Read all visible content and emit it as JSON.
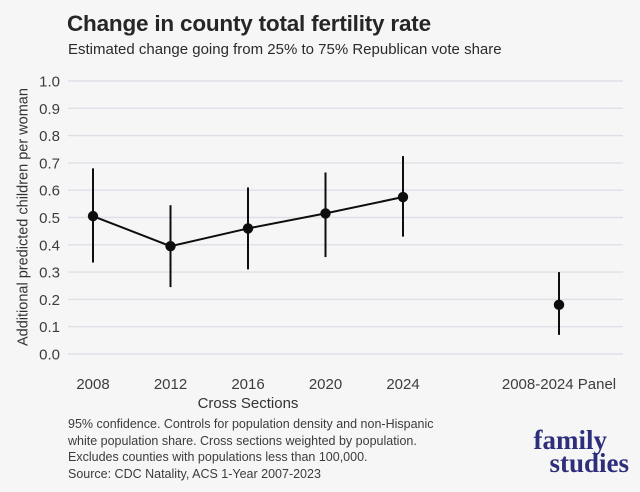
{
  "header": {
    "title": "Change in county total fertility rate",
    "subtitle": "Estimated change going from 25% to 75% Republican vote share"
  },
  "chart_data": {
    "type": "scatter",
    "title": "Change in county total fertility rate",
    "subtitle": "Estimated change going from 25% to 75% Republican vote share",
    "xlabel": "Cross Sections",
    "ylabel": "Additional predicted children per woman",
    "ylim": [
      0,
      1
    ],
    "ytick_labels": [
      "0.0",
      "0.1",
      "0.2",
      "0.3",
      "0.4",
      "0.5",
      "0.6",
      "0.7",
      "0.8",
      "0.9",
      "1.0"
    ],
    "grid": true,
    "legend": "none",
    "categories": [
      "2008",
      "2012",
      "2016",
      "2020",
      "2024",
      "2008-2024 Panel"
    ],
    "points": [
      {
        "label": "2008",
        "estimate": 0.505,
        "ci_low": 0.335,
        "ci_high": 0.68,
        "group": "cross-section"
      },
      {
        "label": "2012",
        "estimate": 0.395,
        "ci_low": 0.245,
        "ci_high": 0.545,
        "group": "cross-section"
      },
      {
        "label": "2016",
        "estimate": 0.46,
        "ci_low": 0.31,
        "ci_high": 0.61,
        "group": "cross-section"
      },
      {
        "label": "2020",
        "estimate": 0.515,
        "ci_low": 0.355,
        "ci_high": 0.665,
        "group": "cross-section"
      },
      {
        "label": "2024",
        "estimate": 0.575,
        "ci_low": 0.43,
        "ci_high": 0.725,
        "group": "cross-section"
      },
      {
        "label": "2008-2024 Panel",
        "estimate": 0.18,
        "ci_low": 0.07,
        "ci_high": 0.3,
        "group": "panel"
      }
    ],
    "point_color": "#0e0e0e",
    "gridline_color": "#dfdfe8",
    "tick_label_color": "#3d3d3d"
  },
  "notes": {
    "lines": [
      "95% confidence. Controls for population density and non-Hispanic",
      "white population share. Cross sections weighted by population.",
      "Excludes counties with populations less than 100,000.",
      "Source: CDC Natality, ACS 1-Year 2007-2023"
    ]
  },
  "logo": {
    "line1": "family",
    "line2": "studies",
    "color": "#2e2f7b"
  },
  "colors": {
    "background": "#f6f6f6",
    "title_text": "#262626",
    "muted_text": "#3c3c3c",
    "accent_navy": "#2e2f7b"
  }
}
